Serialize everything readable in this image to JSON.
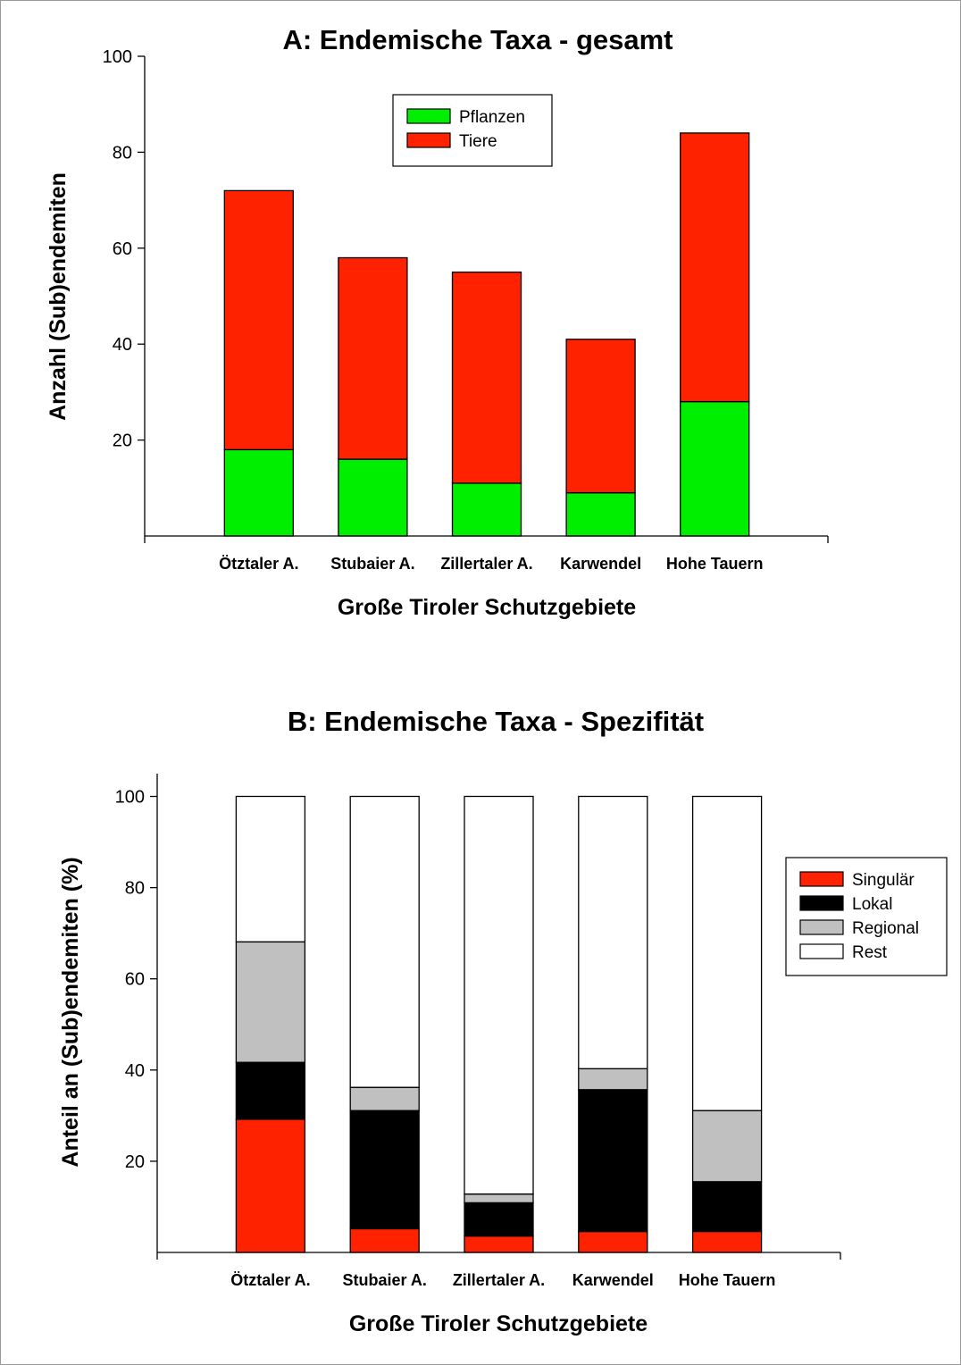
{
  "chart_data": [
    {
      "type": "bar",
      "stacked": true,
      "title": "A: Endemische Taxa - gesamt",
      "xlabel": "Große Tiroler Schutzgebiete",
      "ylabel": "Anzahl (Sub)endemiten",
      "ylim": [
        0,
        100
      ],
      "yticks": [
        20,
        40,
        60,
        80,
        100
      ],
      "categories": [
        "Ötztaler A.",
        "Stubaier A.",
        "Zillertaler A.",
        "Karwendel",
        "Hohe Tauern"
      ],
      "series": [
        {
          "name": "Pflanzen",
          "color": "#00ee00",
          "values": [
            18,
            16,
            11,
            9,
            28
          ]
        },
        {
          "name": "Tiere",
          "color": "#ff2200",
          "values": [
            54,
            42,
            44,
            32,
            56
          ]
        }
      ],
      "legend_position": "top-center"
    },
    {
      "type": "bar",
      "stacked": true,
      "title": "B: Endemische Taxa - Spezifität",
      "xlabel": "Große Tiroler Schutzgebiete",
      "ylabel": "Anteil an (Sub)endemiten (%)",
      "ylim": [
        0,
        105
      ],
      "yticks": [
        20,
        40,
        60,
        80,
        100
      ],
      "categories": [
        "Ötztaler A.",
        "Stubaier A.",
        "Zillertaler A.",
        "Karwendel",
        "Hohe Tauern"
      ],
      "series": [
        {
          "name": "Singulär",
          "color": "#ff2200",
          "values": [
            29.2,
            5.2,
            3.6,
            4.6,
            4.6
          ]
        },
        {
          "name": "Lokal",
          "color": "#000000",
          "values": [
            12.5,
            25.9,
            7.3,
            31.1,
            10.9
          ]
        },
        {
          "name": "Regional",
          "color": "#c0c0c0",
          "values": [
            26.4,
            5.1,
            1.9,
            4.6,
            15.6
          ]
        },
        {
          "name": "Rest",
          "color": "#ffffff",
          "values": [
            31.9,
            63.8,
            87.2,
            59.7,
            68.9
          ]
        }
      ],
      "legend_position": "right"
    }
  ]
}
